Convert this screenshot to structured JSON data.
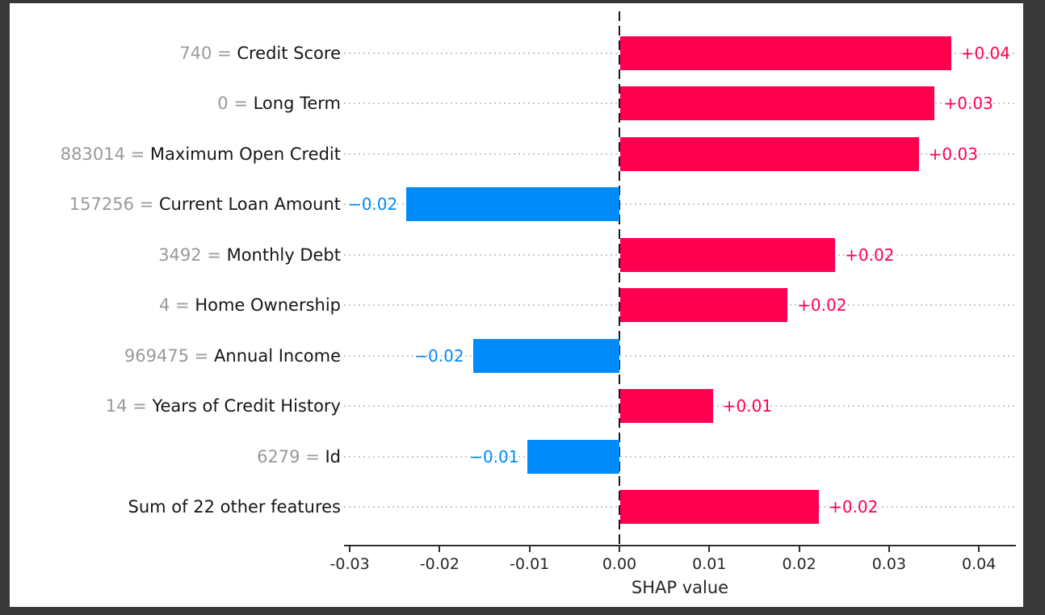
{
  "chart_data": {
    "type": "bar",
    "orientation": "horizontal",
    "title": "",
    "xlabel": "SHAP value",
    "ylabel": "",
    "grid": "dotted horizontal gridlines per feature row",
    "zero_line": "dashed vertical at 0.00",
    "features": [
      {
        "value": "740",
        "name": "Credit Score",
        "shap": 0.0369,
        "label": "+0.04"
      },
      {
        "value": "0",
        "name": "Long Term",
        "shap": 0.035,
        "label": "+0.03"
      },
      {
        "value": "883014",
        "name": "Maximum Open Credit",
        "shap": 0.0333,
        "label": "+0.03"
      },
      {
        "value": "157256",
        "name": "Current Loan Amount",
        "shap": -0.0237,
        "label": "−0.02"
      },
      {
        "value": "3492",
        "name": "Monthly Debt",
        "shap": 0.024,
        "label": "+0.02"
      },
      {
        "value": "4",
        "name": "Home Ownership",
        "shap": 0.0187,
        "label": "+0.02"
      },
      {
        "value": "969475",
        "name": "Annual Income",
        "shap": -0.0163,
        "label": "−0.02"
      },
      {
        "value": "14",
        "name": "Years of Credit History",
        "shap": 0.0104,
        "label": "+0.01"
      },
      {
        "value": "6279",
        "name": "Id",
        "shap": -0.0102,
        "label": "−0.01"
      },
      {
        "value": null,
        "name": "Sum of 22 other features",
        "shap": 0.0222,
        "label": "+0.02"
      }
    ],
    "equals_separator": " = ",
    "xaxis": {
      "min": -0.0306,
      "max": 0.0441,
      "ticks": [
        -0.03,
        -0.02,
        -0.01,
        0.0,
        0.01,
        0.02,
        0.03,
        0.04
      ],
      "tick_labels": [
        "-0.03",
        "-0.02",
        "-0.01",
        "0.00",
        "0.01",
        "0.02",
        "0.03",
        "0.04"
      ]
    },
    "legend": null
  },
  "colors": {
    "positive_bar": "#ff0051",
    "negative_bar": "#008bfb",
    "feature_value_gray": "#999999",
    "feature_name_black": "#161616",
    "tick_text": "#262626",
    "grid": "#c9c9c9",
    "axis": "#2e2e2e",
    "zero_line": "#1a1a1a",
    "canvas_bg": "#ffffff",
    "frame_bg": "#383838"
  }
}
